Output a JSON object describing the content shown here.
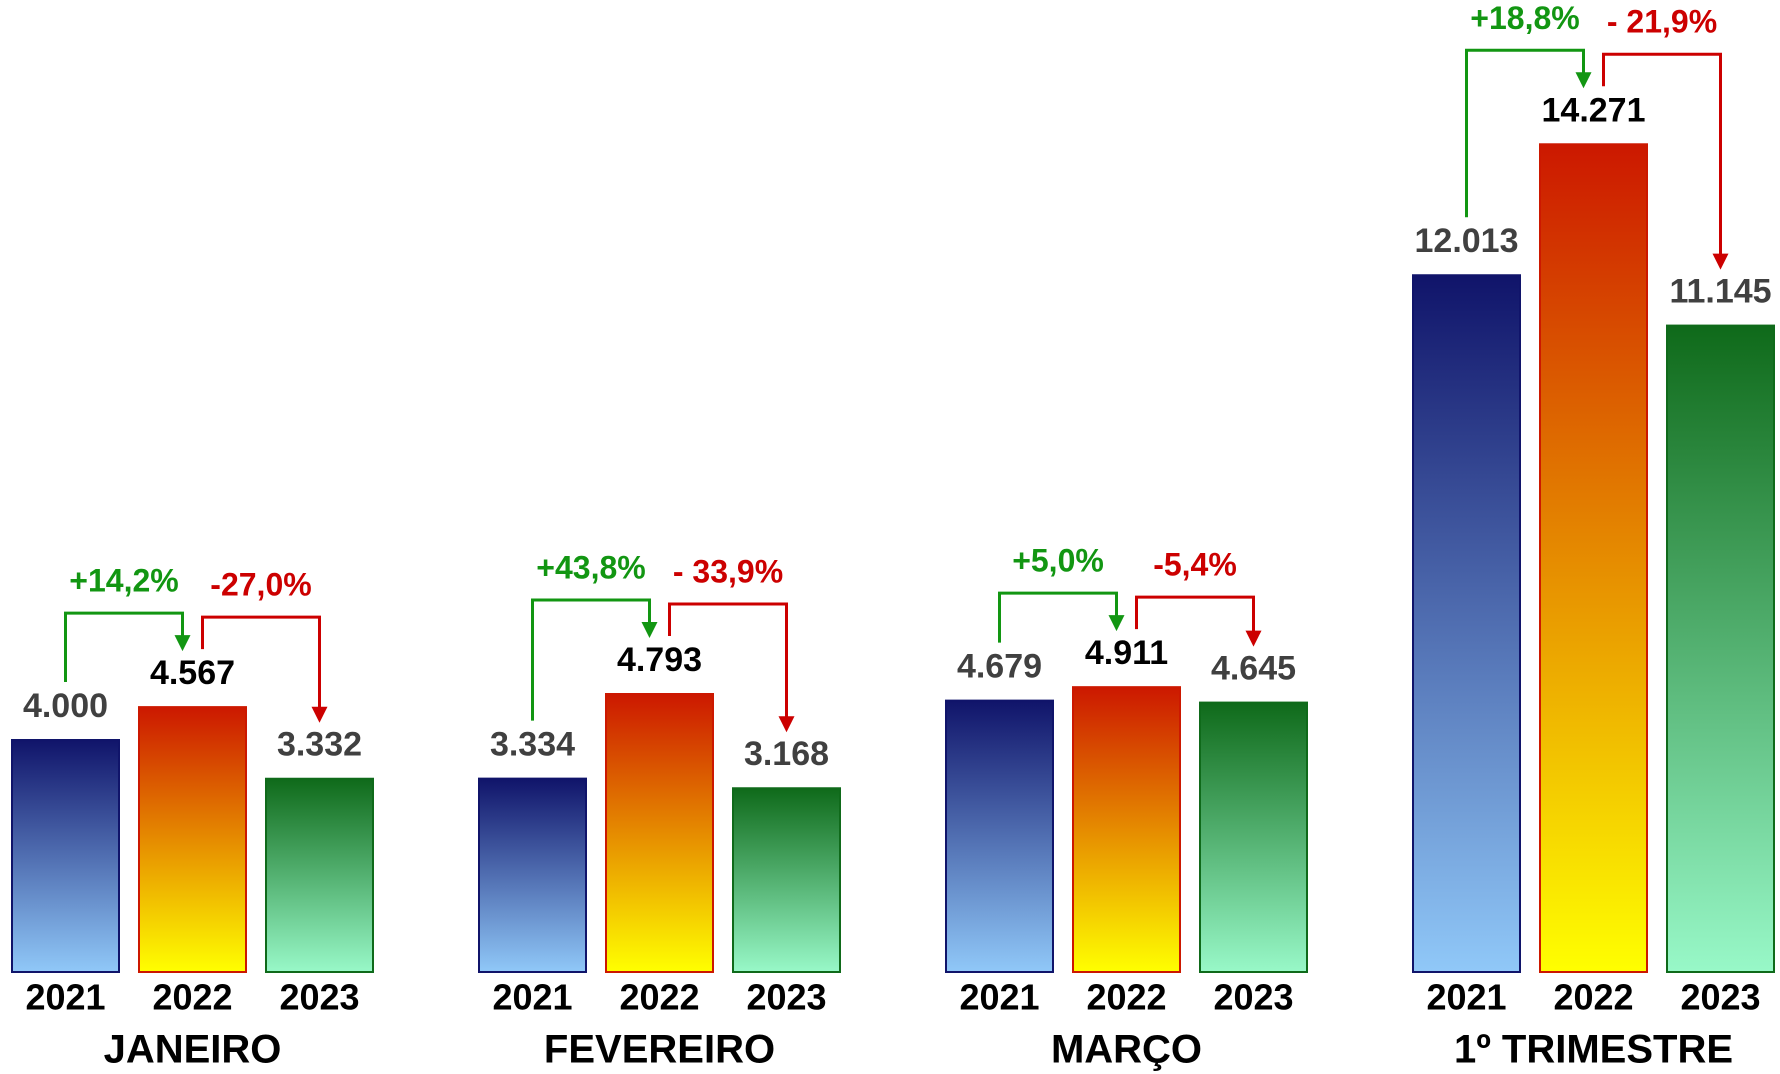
{
  "chart_data": {
    "type": "bar",
    "categories": [
      "JANEIRO",
      "FEVEREIRO",
      "MARÇO",
      "1º TRIMESTRE"
    ],
    "series": [
      {
        "name": "2021",
        "color": "#10146a",
        "gradient_end": "#90c8f8",
        "label_color": "#404040",
        "values": [
          4000,
          3334,
          4679,
          12013
        ],
        "value_labels": [
          "4.000",
          "3.334",
          "4.679",
          "12.013"
        ]
      },
      {
        "name": "2022",
        "color": "#cc1800",
        "gradient_end": "#ffff00",
        "label_color": "#000000",
        "values": [
          4567,
          4793,
          4911,
          14271
        ],
        "value_labels": [
          "4.567",
          "4.793",
          "4.911",
          "14.271"
        ]
      },
      {
        "name": "2023",
        "color": "#0f6a1a",
        "gradient_end": "#98f8c8",
        "label_color": "#404040",
        "values": [
          3332,
          3168,
          4645,
          11145
        ],
        "value_labels": [
          "3.332",
          "3.168",
          "4.645",
          "11.145"
        ]
      }
    ],
    "changes": [
      [
        "+14,2%",
        "-27,0%"
      ],
      [
        "+43,8%",
        "- 33,9%"
      ],
      [
        "+5,0%",
        "-5,4%"
      ],
      [
        "+18,8%",
        "- 21,9%"
      ]
    ],
    "change_colors": [
      "#129612",
      "#cc0000"
    ],
    "ylim": [
      0,
      15000
    ]
  }
}
